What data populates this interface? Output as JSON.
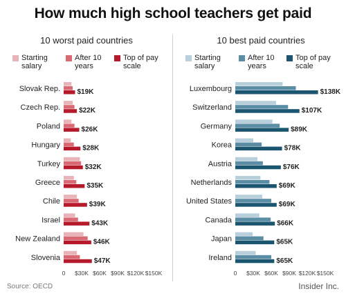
{
  "title": "How much high school teachers get paid",
  "source": "Source: OECD",
  "brand": "Insider Inc.",
  "series_labels": [
    "Starting salary",
    "After 10 years",
    "Top of pay scale"
  ],
  "chart_data": [
    {
      "type": "bar",
      "orientation": "horizontal",
      "title": "10 worst paid countries",
      "categories": [
        "Slovak Rep.",
        "Czech Rep.",
        "Poland",
        "Hungary",
        "Turkey",
        "Greece",
        "Chile",
        "Israel",
        "New Zealand",
        "Slovenia"
      ],
      "series": [
        {
          "name": "Starting salary",
          "color": "#e8b4b8",
          "values": [
            13,
            15,
            13,
            12,
            27,
            17,
            22,
            19,
            33,
            22
          ]
        },
        {
          "name": "After 10 years",
          "color": "#d96a73",
          "values": [
            15,
            18,
            18,
            17,
            29,
            21,
            25,
            24,
            40,
            27
          ]
        },
        {
          "name": "Top of pay scale",
          "color": "#b5192a",
          "values": [
            19,
            22,
            26,
            28,
            32,
            35,
            39,
            43,
            46,
            47
          ]
        }
      ],
      "data_labels": [
        "$19K",
        "$22K",
        "$26K",
        "$28K",
        "$32K",
        "$35K",
        "$39K",
        "$43K",
        "$46K",
        "$47K"
      ],
      "xlim": [
        0,
        150
      ],
      "ticks": [
        "0",
        "$30K",
        "$60K",
        "$90K",
        "$120K",
        "$150K"
      ],
      "tick_values": [
        0,
        30,
        60,
        90,
        120,
        150
      ],
      "legend": "top"
    },
    {
      "type": "bar",
      "orientation": "horizontal",
      "title": "10 best paid countries",
      "categories": [
        "Luxembourg",
        "Switzerland",
        "Germany",
        "Korea",
        "Austria",
        "Netherlands",
        "United States",
        "Canada",
        "Japan",
        "Ireland"
      ],
      "series": [
        {
          "name": "Starting salary",
          "color": "#b8d0dc",
          "values": [
            79,
            68,
            62,
            30,
            37,
            42,
            45,
            40,
            29,
            34
          ]
        },
        {
          "name": "After 10 years",
          "color": "#5b8da5",
          "values": [
            101,
            88,
            74,
            44,
            46,
            57,
            60,
            59,
            47,
            60
          ]
        },
        {
          "name": "Top of pay scale",
          "color": "#1c5570",
          "values": [
            138,
            107,
            89,
            78,
            76,
            69,
            69,
            66,
            65,
            65
          ]
        }
      ],
      "data_labels": [
        "$138K",
        "$107K",
        "$89K",
        "$78K",
        "$76K",
        "$69K",
        "$69K",
        "$66K",
        "$65K",
        "$65K"
      ],
      "xlim": [
        0,
        150
      ],
      "ticks": [
        "0",
        "$30K",
        "$60K",
        "$90K",
        "$120K",
        "$150K"
      ],
      "tick_values": [
        0,
        30,
        60,
        90,
        120,
        150
      ],
      "legend": "top"
    }
  ]
}
